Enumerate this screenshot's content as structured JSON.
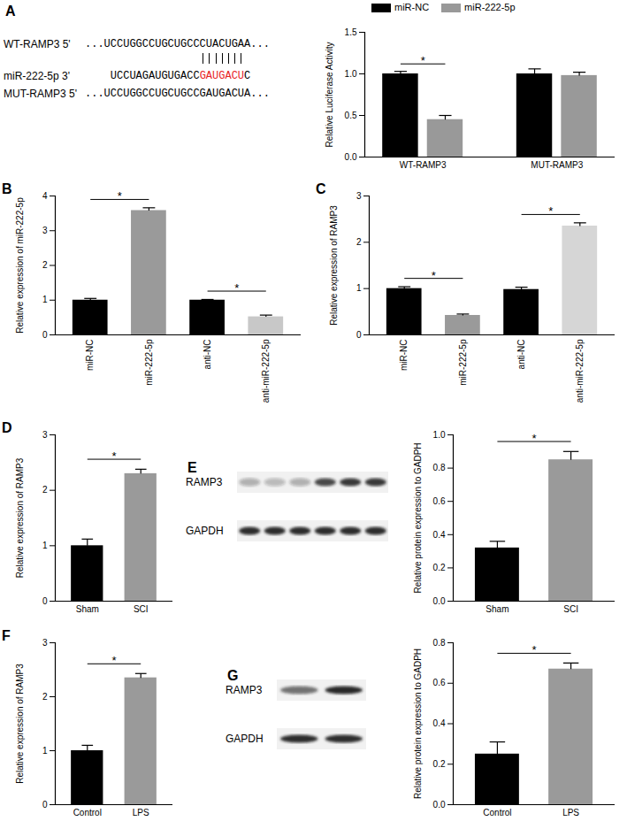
{
  "chart_data": [
    {
      "type": "alignment",
      "panel": "A",
      "rows": [
        {
          "name": "WT-RAMP3 5'",
          "parts": [
            {
              "text": "...UCCUGGCCUGCUGCCCUACUGAA..."
            }
          ]
        },
        {
          "name": "miR-222-5p 3'",
          "parts": [
            {
              "text": "UCCUAGAUGUGACC"
            },
            {
              "text": "GAUGACU",
              "color": "#e8231f"
            },
            {
              "text": "C"
            }
          ]
        },
        {
          "name": "MUT-RAMP3 5'",
          "parts": [
            {
              "text": "...UCCUGGCCUGCUGCCGAUGACUA..."
            }
          ]
        }
      ]
    },
    {
      "type": "bar",
      "categories": [
        "WT-RAMP3",
        "MUT-RAMP3"
      ],
      "series": [
        {
          "name": "miR-NC",
          "color": "#000000",
          "values": [
            1.0,
            1.0
          ],
          "errors": [
            0.03,
            0.06
          ]
        },
        {
          "name": "miR-222-5p",
          "color": "#999999",
          "values": [
            0.45,
            0.98
          ],
          "errors": [
            0.05,
            0.04
          ]
        }
      ],
      "y_label": "Relative Luciferase Activity",
      "ylim": [
        0,
        1.5
      ],
      "yticks": [
        {
          "value": 0,
          "label": "0.0"
        },
        {
          "value": 0.5,
          "label": "0.5"
        },
        {
          "value": 1,
          "label": "1.0"
        },
        {
          "value": 1.5,
          "label": "1.5"
        }
      ],
      "legend": "top",
      "annotations": [
        {
          "text": "*",
          "category": "WT-RAMP3",
          "between": [
            "miR-NC",
            "miR-222-5p"
          ]
        }
      ]
    },
    {
      "type": "bar",
      "panel": "B",
      "categories": [
        "miR-NC",
        "miR-222-5p",
        "anti-NC",
        "anti-miR-222-5p"
      ],
      "values": [
        1.0,
        3.58,
        1.0,
        0.52
      ],
      "errors": [
        0.05,
        0.08,
        0.02,
        0.05
      ],
      "colors": [
        "#000000",
        "#9a9a9a",
        "#000000",
        "#c8c8c8"
      ],
      "y_label": "Relative expression of miR-222-5p",
      "ylim": [
        0,
        4
      ],
      "yticks": [
        0,
        1,
        2,
        3,
        4
      ],
      "annotations": [
        {
          "text": "*",
          "between": [
            "miR-NC",
            "miR-222-5p"
          ]
        },
        {
          "text": "*",
          "between": [
            "anti-NC",
            "anti-miR-222-5p"
          ]
        }
      ]
    },
    {
      "type": "bar",
      "panel": "C",
      "categories": [
        "miR-NC",
        "miR-222-5p",
        "anti-NC",
        "anti-miR-222-5p"
      ],
      "values": [
        1.0,
        0.42,
        0.98,
        2.35
      ],
      "errors": [
        0.04,
        0.03,
        0.05,
        0.07
      ],
      "colors": [
        "#000000",
        "#9a9a9a",
        "#000000",
        "#d6d6d6"
      ],
      "y_label": "Relative expression of RAMP3",
      "ylim": [
        0,
        3
      ],
      "yticks": [
        0,
        1,
        2,
        3
      ],
      "annotations": [
        {
          "text": "*",
          "between": [
            "miR-NC",
            "miR-222-5p"
          ]
        },
        {
          "text": "*",
          "between": [
            "anti-NC",
            "anti-miR-222-5p"
          ]
        }
      ]
    },
    {
      "type": "bar",
      "panel": "D",
      "categories": [
        "Sham",
        "SCI"
      ],
      "values": [
        1.0,
        2.3
      ],
      "errors": [
        0.12,
        0.08
      ],
      "colors": [
        "#000000",
        "#9a9a9a"
      ],
      "y_label": "Relative expression of RAMP3",
      "ylim": [
        0,
        3
      ],
      "yticks": [
        0,
        1,
        2,
        3
      ],
      "annotations": [
        {
          "text": "*",
          "between": [
            "Sham",
            "SCI"
          ]
        }
      ]
    },
    {
      "type": "blot",
      "panel": "E",
      "labels": [
        "RAMP3",
        "GAPDH"
      ]
    },
    {
      "type": "bar",
      "categories": [
        "Sham",
        "SCI"
      ],
      "values": [
        0.32,
        0.85
      ],
      "errors": [
        0.04,
        0.05
      ],
      "colors": [
        "#000000",
        "#9a9a9a"
      ],
      "y_label": "Relative protein expression to GADPH",
      "ylim": [
        0,
        1.0
      ],
      "yticks": [
        {
          "value": 0,
          "label": "0.0"
        },
        {
          "value": 0.2,
          "label": "0.2"
        },
        {
          "value": 0.4,
          "label": "0.4"
        },
        {
          "value": 0.6,
          "label": "0.6"
        },
        {
          "value": 0.8,
          "label": "0.8"
        },
        {
          "value": 1.0,
          "label": "1.0"
        }
      ],
      "annotations": [
        {
          "text": "*",
          "between": [
            "Sham",
            "SCI"
          ]
        }
      ]
    },
    {
      "type": "bar",
      "panel": "F",
      "categories": [
        "Control",
        "LPS"
      ],
      "values": [
        1.0,
        2.35
      ],
      "errors": [
        0.1,
        0.08
      ],
      "colors": [
        "#000000",
        "#9a9a9a"
      ],
      "y_label": "Relative expression of RAMP3",
      "ylim": [
        0,
        3
      ],
      "yticks": [
        0,
        1,
        2,
        3
      ],
      "annotations": [
        {
          "text": "*",
          "between": [
            "Control",
            "LPS"
          ]
        }
      ]
    },
    {
      "type": "blot",
      "panel": "G",
      "labels": [
        "RAMP3",
        "GAPDH"
      ]
    },
    {
      "type": "bar",
      "categories": [
        "Control",
        "LPS"
      ],
      "values": [
        0.25,
        0.67
      ],
      "errors": [
        0.06,
        0.03
      ],
      "colors": [
        "#000000",
        "#9a9a9a"
      ],
      "y_label": "Relative protein expression to GADPH",
      "ylim": [
        0,
        0.8
      ],
      "yticks": [
        {
          "value": 0,
          "label": "0.0"
        },
        {
          "value": 0.2,
          "label": "0.2"
        },
        {
          "value": 0.4,
          "label": "0.4"
        },
        {
          "value": 0.6,
          "label": "0.6"
        },
        {
          "value": 0.8,
          "label": "0.8"
        }
      ],
      "annotations": [
        {
          "text": "*",
          "between": [
            "Control",
            "LPS"
          ]
        }
      ]
    }
  ]
}
